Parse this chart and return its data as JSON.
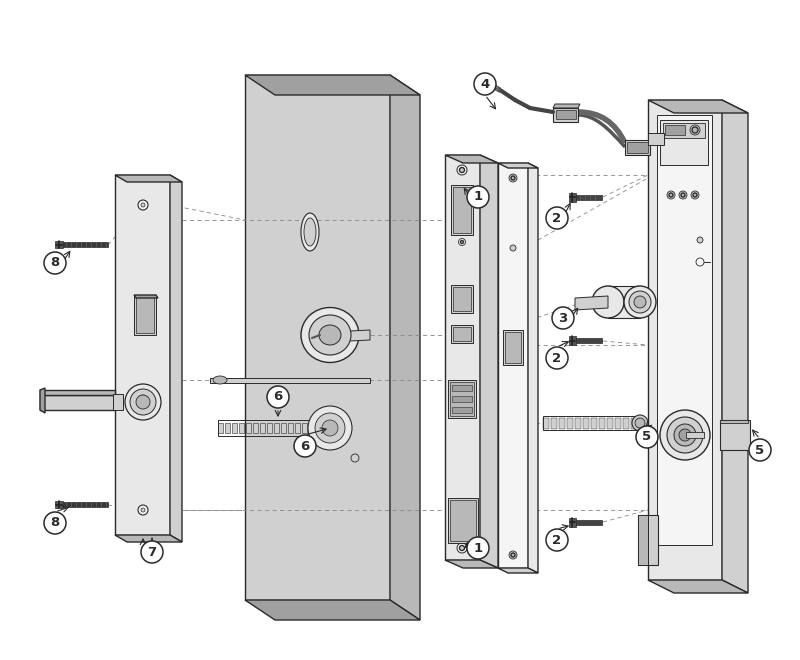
{
  "bg_color": "#ffffff",
  "line_color": "#2a2a2a",
  "face_light": "#e8e8e8",
  "face_mid": "#d0d0d0",
  "face_dark": "#b8b8b8",
  "face_darker": "#a0a0a0",
  "face_white": "#f5f5f5"
}
